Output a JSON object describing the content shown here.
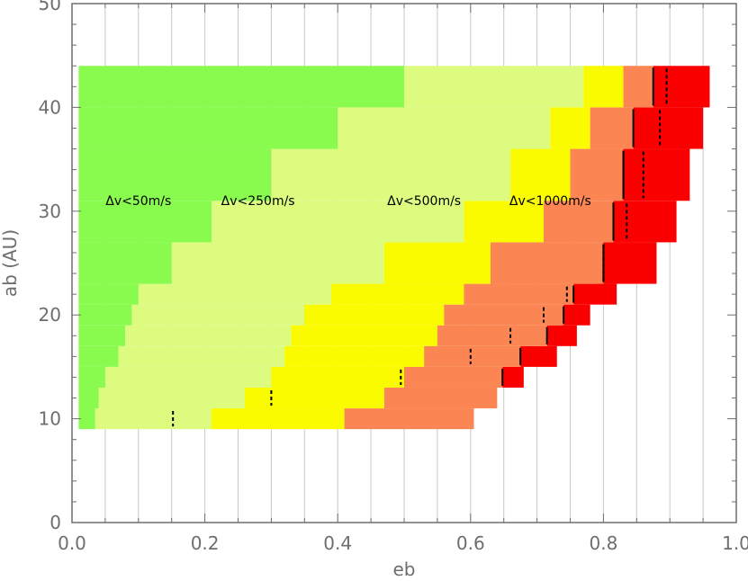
{
  "chart_data": {
    "type": "heatmap",
    "title": "",
    "xlabel": "eb",
    "ylabel": "ab (AU)",
    "xlim": [
      0.0,
      1.0
    ],
    "ylim": [
      0,
      50
    ],
    "x_ticks": [
      "0.0",
      "0.2",
      "0.4",
      "0.6",
      "0.8",
      "1.0"
    ],
    "y_ticks": [
      "0",
      "10",
      "20",
      "30",
      "40",
      "50"
    ],
    "grid": true,
    "colors": {
      "lt50": "#88fb4e",
      "lt250": "#ddfb7f",
      "lt500": "#fbfb00",
      "lt1000": "#fb8653",
      "max": "#fb0000",
      "grid": "#c8c8c8",
      "axis": "#6e6e6e"
    },
    "region_labels": [
      {
        "text": "Δv<50m/s",
        "x": 0.1,
        "y": 30.6
      },
      {
        "text": "Δv<250m/s",
        "x": 0.28,
        "y": 30.6
      },
      {
        "text": "Δv<500m/s",
        "x": 0.53,
        "y": 30.6
      },
      {
        "text": "Δv<1000m/s",
        "x": 0.72,
        "y": 30.6
      }
    ],
    "rows": [
      {
        "a_lo": 9,
        "a_hi": 11,
        "x50": 0.035,
        "x250": 0.21,
        "x500": 0.41,
        "x1000": 0.605,
        "xmax": null
      },
      {
        "a_lo": 11,
        "a_hi": 13,
        "x50": 0.04,
        "x250": 0.26,
        "x500": 0.47,
        "x1000": 0.64,
        "xmax": null
      },
      {
        "a_lo": 13,
        "a_hi": 15,
        "x50": 0.05,
        "x250": 0.3,
        "x500": 0.5,
        "x1000": 0.648,
        "xmax": 0.68
      },
      {
        "a_lo": 15,
        "a_hi": 17,
        "x50": 0.07,
        "x250": 0.32,
        "x500": 0.53,
        "x1000": 0.675,
        "xmax": 0.73
      },
      {
        "a_lo": 17,
        "a_hi": 19,
        "x50": 0.08,
        "x250": 0.33,
        "x500": 0.55,
        "x1000": 0.715,
        "xmax": 0.76
      },
      {
        "a_lo": 19,
        "a_hi": 21,
        "x50": 0.09,
        "x250": 0.35,
        "x500": 0.56,
        "x1000": 0.74,
        "xmax": 0.78
      },
      {
        "a_lo": 21,
        "a_hi": 23,
        "x50": 0.1,
        "x250": 0.39,
        "x500": 0.59,
        "x1000": 0.755,
        "xmax": 0.82
      },
      {
        "a_lo": 23,
        "a_hi": 27,
        "x50": 0.15,
        "x250": 0.47,
        "x500": 0.63,
        "x1000": 0.8,
        "xmax": 0.88
      },
      {
        "a_lo": 27,
        "a_hi": 31,
        "x50": 0.21,
        "x250": 0.59,
        "x500": 0.71,
        "x1000": 0.815,
        "xmax": 0.91
      },
      {
        "a_lo": 31,
        "a_hi": 36,
        "x50": 0.3,
        "x250": 0.66,
        "x500": 0.75,
        "x1000": 0.83,
        "xmax": 0.93
      },
      {
        "a_lo": 36,
        "a_hi": 40,
        "x50": 0.4,
        "x250": 0.72,
        "x500": 0.78,
        "x1000": 0.845,
        "xmax": 0.95
      },
      {
        "a_lo": 40,
        "a_hi": 44,
        "x50": 0.5,
        "x250": 0.77,
        "x500": 0.83,
        "x1000": 0.875,
        "xmax": 0.96
      }
    ],
    "solid_markers": [
      {
        "x": 0.648,
        "a_lo": 13,
        "a_hi": 15
      },
      {
        "x": 0.675,
        "a_lo": 15,
        "a_hi": 17
      },
      {
        "x": 0.715,
        "a_lo": 17,
        "a_hi": 19
      },
      {
        "x": 0.74,
        "a_lo": 19,
        "a_hi": 21
      },
      {
        "x": 0.755,
        "a_lo": 21,
        "a_hi": 23
      },
      {
        "x": 0.8,
        "a_lo": 23,
        "a_hi": 27
      },
      {
        "x": 0.815,
        "a_lo": 27,
        "a_hi": 31
      },
      {
        "x": 0.83,
        "a_lo": 31,
        "a_hi": 36
      },
      {
        "x": 0.845,
        "a_lo": 36,
        "a_hi": 40
      },
      {
        "x": 0.875,
        "a_lo": 40,
        "a_hi": 44
      }
    ],
    "dashed_markers": [
      {
        "x": 0.152,
        "a_lo": 9,
        "a_hi": 11
      },
      {
        "x": 0.3,
        "a_lo": 11,
        "a_hi": 13
      },
      {
        "x": 0.495,
        "a_lo": 13,
        "a_hi": 15
      },
      {
        "x": 0.6,
        "a_lo": 15,
        "a_hi": 17
      },
      {
        "x": 0.66,
        "a_lo": 17,
        "a_hi": 19
      },
      {
        "x": 0.71,
        "a_lo": 19,
        "a_hi": 21
      },
      {
        "x": 0.745,
        "a_lo": 21,
        "a_hi": 23
      },
      {
        "x": 0.8,
        "a_lo": 23,
        "a_hi": 27
      },
      {
        "x": 0.835,
        "a_lo": 27,
        "a_hi": 31
      },
      {
        "x": 0.86,
        "a_lo": 31,
        "a_hi": 36
      },
      {
        "x": 0.885,
        "a_lo": 36,
        "a_hi": 40
      },
      {
        "x": 0.895,
        "a_lo": 40,
        "a_hi": 44
      }
    ]
  }
}
